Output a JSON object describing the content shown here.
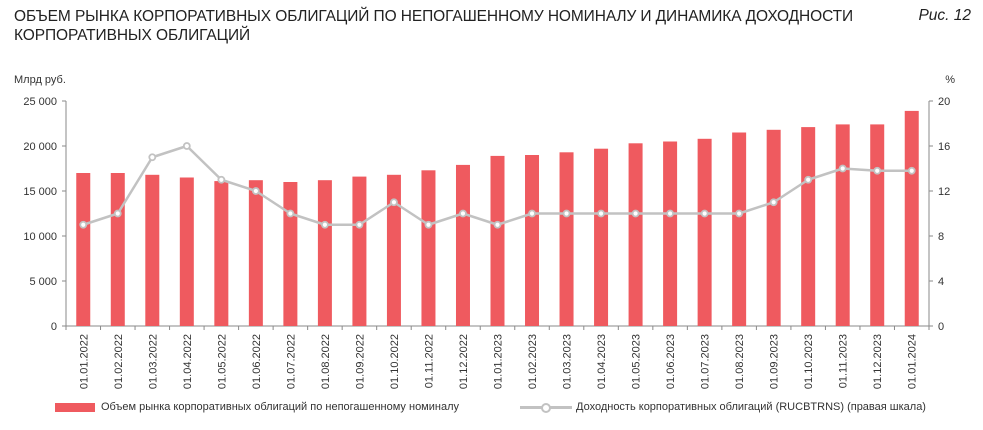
{
  "header": {
    "title": "ОБЪЕМ РЫНКА КОРПОРАТИВНЫХ ОБЛИГАЦИЙ ПО НЕПОГАШЕННОМУ НОМИНАЛУ И ДИНАМИКА ДОХОДНОСТИ КОРПОРАТИВНЫХ ОБЛИГАЦИЙ",
    "figure_label": "Рис. 12"
  },
  "chart_data": {
    "type": "bar",
    "title": "ОБЪЕМ РЫНКА КОРПОРАТИВНЫХ ОБЛИГАЦИЙ ПО НЕПОГАШЕННОМУ НОМИНАЛУ И ДИНАМИКА ДОХОДНОСТИ КОРПОРАТИВНЫХ ОБЛИГАЦИЙ",
    "ylabel_left": "Млрд руб.",
    "ylabel_right": "%",
    "ylim_left": [
      0,
      25000
    ],
    "ylim_right": [
      0,
      20
    ],
    "yticks_left": [
      "0",
      "5 000",
      "10 000",
      "15 000",
      "20 000",
      "25 000"
    ],
    "yticks_right": [
      "0",
      "4",
      "8",
      "12",
      "16",
      "20"
    ],
    "grid": false,
    "legend_position": "bottom",
    "categories": [
      "01.01.2022",
      "01.02.2022",
      "01.03.2022",
      "01.04.2022",
      "01.05.2022",
      "01.06.2022",
      "01.07.2022",
      "01.08.2022",
      "01.09.2022",
      "01.10.2022",
      "01.11.2022",
      "01.12.2022",
      "01.01.2023",
      "01.02.2023",
      "01.03.2023",
      "01.04.2023",
      "01.05.2023",
      "01.06.2023",
      "01.07.2023",
      "01.08.2023",
      "01.09.2023",
      "01.10.2023",
      "01.11.2023",
      "01.12.2023",
      "01.01.2024"
    ],
    "series": [
      {
        "name": "Объем рынка корпоративных облигаций по непогашенному номиналу",
        "type": "bar",
        "axis": "left",
        "color": "#ef5a5f",
        "values": [
          17000,
          17000,
          16800,
          16500,
          16100,
          16200,
          16000,
          16200,
          16600,
          16800,
          17300,
          17900,
          18900,
          19000,
          19300,
          19700,
          20300,
          20500,
          20800,
          21500,
          21800,
          22100,
          22400,
          22400,
          23900
        ]
      },
      {
        "name": "Доходность корпоративных облигаций (RUCBTRNS) (правая шкала)",
        "type": "line",
        "axis": "right",
        "color": "#c2c2c2",
        "values": [
          9,
          10,
          15,
          16,
          13,
          12,
          10,
          9,
          9,
          11,
          9,
          10,
          9,
          10,
          10,
          10,
          10,
          10,
          10,
          10,
          11,
          13,
          14,
          13.8,
          13.8
        ]
      }
    ]
  }
}
